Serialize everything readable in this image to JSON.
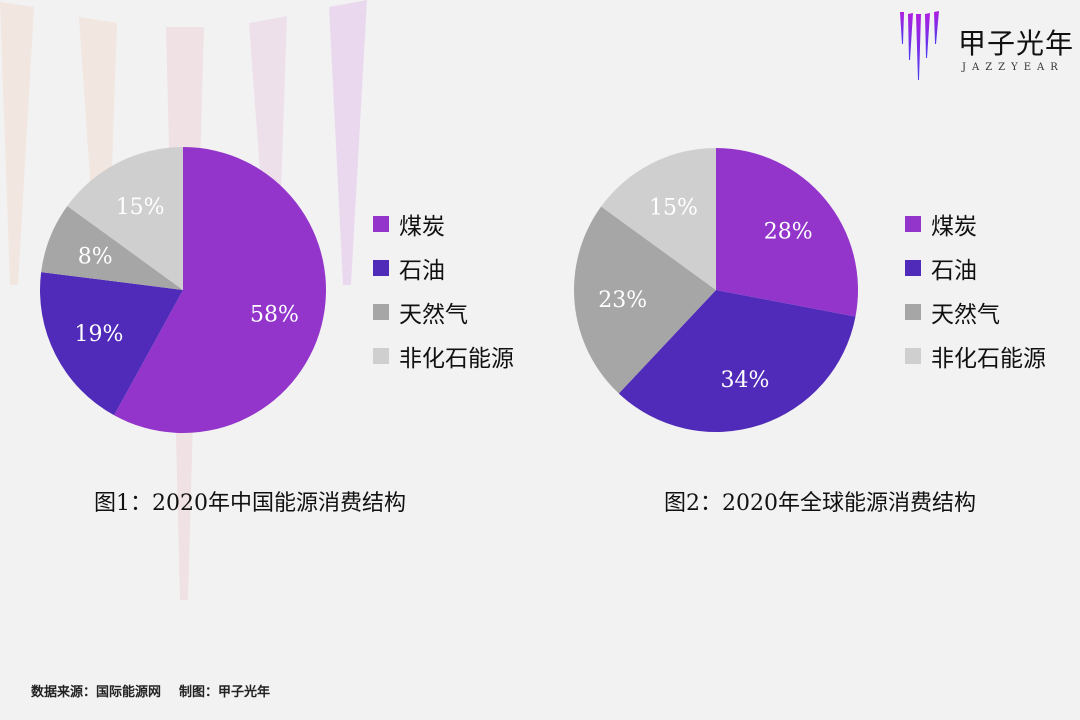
{
  "logo": {
    "cn": "甲子光年",
    "en": "JAZZYEAR"
  },
  "legend_labels": [
    "煤炭",
    "石油",
    "天然气",
    "非化石能源"
  ],
  "colors": {
    "coal": "#9335cb",
    "oil": "#502bb9",
    "gas": "#a6a6a6",
    "nonfossil": "#d0cfd0",
    "background": "#f2f2f2"
  },
  "captions": {
    "chart1": "图1：2020年中国能源消费结构",
    "chart2": "图2：2020年全球能源消费结构"
  },
  "footer": {
    "source": "数据来源：国际能源网",
    "made_by": "制图：甲子光年"
  },
  "chart_data": [
    {
      "type": "pie",
      "title": "图1：2020年中国能源消费结构",
      "categories": [
        "煤炭",
        "石油",
        "天然气",
        "非化石能源"
      ],
      "values": [
        58,
        19,
        8,
        15
      ],
      "labels": [
        "58%",
        "19%",
        "8%",
        "15%"
      ],
      "colors": [
        "#9335cb",
        "#502bb9",
        "#a6a6a6",
        "#d0cfd0"
      ],
      "legend_position": "right"
    },
    {
      "type": "pie",
      "title": "图2：2020年全球能源消费结构",
      "categories": [
        "煤炭",
        "石油",
        "天然气",
        "非化石能源"
      ],
      "values": [
        28,
        34,
        23,
        15
      ],
      "labels": [
        "28%",
        "34%",
        "23%",
        "15%"
      ],
      "colors": [
        "#9335cb",
        "#502bb9",
        "#a6a6a6",
        "#d0cfd0"
      ],
      "legend_position": "right"
    }
  ]
}
